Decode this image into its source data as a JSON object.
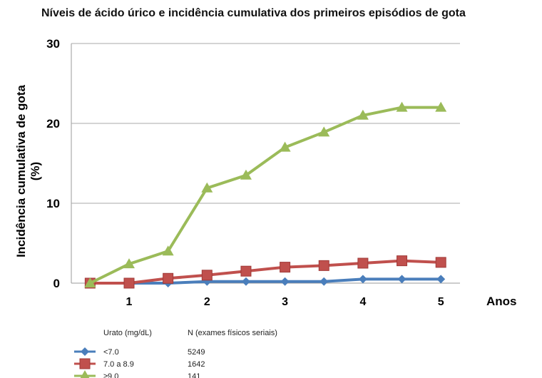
{
  "chart_data": {
    "type": "line",
    "title": "Níveis de ácido úrico e incidência cumulativa dos primeiros episódios de gota",
    "xlabel": "Anos",
    "ylabel": "Incidência cumulativa de gota (%)",
    "x": [
      0.5,
      1,
      1.5,
      2,
      2.5,
      3,
      3.5,
      4,
      4.5,
      5
    ],
    "xticks": [
      "1",
      "2",
      "3",
      "4",
      "5"
    ],
    "xtick_values": [
      1,
      2,
      3,
      4,
      5
    ],
    "yticks": [
      "0",
      "10",
      "20",
      "30"
    ],
    "ylim": [
      0,
      30
    ],
    "grid": true,
    "legend_placement": "bottom-left",
    "legend_header": {
      "group": "Urato (mg/dL)",
      "n": "N (exames físicos seriais)"
    },
    "series": [
      {
        "name": "<7.0",
        "n": "5249",
        "color": "#4a7ebb",
        "marker": "diamond",
        "values": [
          0,
          0,
          0,
          0.2,
          0.2,
          0.2,
          0.2,
          0.5,
          0.5,
          0.5
        ]
      },
      {
        "name": "7.0 a 8.9",
        "n": "1642",
        "color": "#c0504d",
        "marker": "square",
        "values": [
          0,
          0,
          0.6,
          1.0,
          1.5,
          2.0,
          2.2,
          2.5,
          2.8,
          2.6
        ]
      },
      {
        "name": "≥9.0",
        "n": "141",
        "color": "#9bbb59",
        "marker": "triangle",
        "values": [
          0,
          2.4,
          4.0,
          11.9,
          13.5,
          17.0,
          18.9,
          21.0,
          22.0,
          22.0
        ]
      }
    ]
  }
}
